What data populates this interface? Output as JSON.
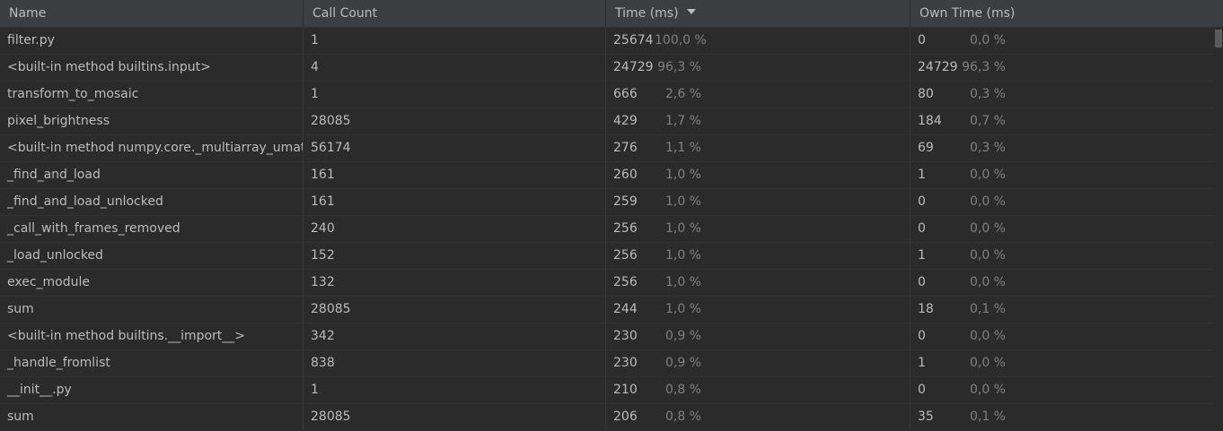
{
  "columns": {
    "name": "Name",
    "call_count": "Call Count",
    "time": "Time (ms)",
    "own_time": "Own Time (ms)"
  },
  "rows": [
    {
      "name": "filter.py",
      "count": "1",
      "time": "25674",
      "time_pct": "100,0 %",
      "own": "0",
      "own_pct": "0,0 %"
    },
    {
      "name": "<built-in method builtins.input>",
      "count": "4",
      "time": "24729",
      "time_pct": "96,3 %",
      "own": "24729",
      "own_pct": "96,3 %"
    },
    {
      "name": "transform_to_mosaic",
      "count": "1",
      "time": "666",
      "time_pct": "2,6 %",
      "own": "80",
      "own_pct": "0,3 %"
    },
    {
      "name": "pixel_brightness",
      "count": "28085",
      "time": "429",
      "time_pct": "1,7 %",
      "own": "184",
      "own_pct": "0,7 %"
    },
    {
      "name": "<built-in method numpy.core._multiarray_umath.implement_array_function>",
      "count": "56174",
      "time": "276",
      "time_pct": "1,1 %",
      "own": "69",
      "own_pct": "0,3 %"
    },
    {
      "name": "_find_and_load",
      "count": "161",
      "time": "260",
      "time_pct": "1,0 %",
      "own": "1",
      "own_pct": "0,0 %"
    },
    {
      "name": "_find_and_load_unlocked",
      "count": "161",
      "time": "259",
      "time_pct": "1,0 %",
      "own": "0",
      "own_pct": "0,0 %"
    },
    {
      "name": "_call_with_frames_removed",
      "count": "240",
      "time": "256",
      "time_pct": "1,0 %",
      "own": "0",
      "own_pct": "0,0 %"
    },
    {
      "name": "_load_unlocked",
      "count": "152",
      "time": "256",
      "time_pct": "1,0 %",
      "own": "1",
      "own_pct": "0,0 %"
    },
    {
      "name": "exec_module",
      "count": "132",
      "time": "256",
      "time_pct": "1,0 %",
      "own": "0",
      "own_pct": "0,0 %"
    },
    {
      "name": "sum",
      "count": "28085",
      "time": "244",
      "time_pct": "1,0 %",
      "own": "18",
      "own_pct": "0,1 %"
    },
    {
      "name": "<built-in method builtins.__import__>",
      "count": "342",
      "time": "230",
      "time_pct": "0,9 %",
      "own": "0",
      "own_pct": "0,0 %"
    },
    {
      "name": "_handle_fromlist",
      "count": "838",
      "time": "230",
      "time_pct": "0,9 %",
      "own": "1",
      "own_pct": "0,0 %"
    },
    {
      "name": "__init__.py",
      "count": "1",
      "time": "210",
      "time_pct": "0,8 %",
      "own": "0",
      "own_pct": "0,0 %"
    },
    {
      "name": "sum",
      "count": "28085",
      "time": "206",
      "time_pct": "0,8 %",
      "own": "35",
      "own_pct": "0,1 %"
    }
  ],
  "icons": {
    "sort": "sort-descending-icon"
  },
  "colors": {
    "background": "#2b2b2b",
    "header": "#3c3f41",
    "text": "#bbbbbb",
    "percent_text": "#808080"
  }
}
